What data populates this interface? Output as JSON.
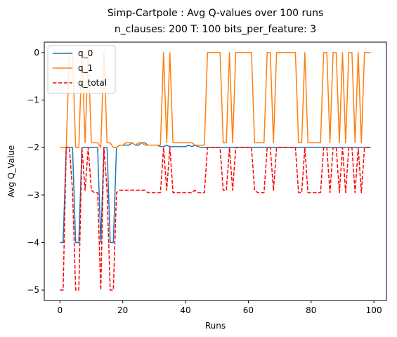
{
  "chart_data": {
    "type": "line",
    "title": "Simp-Cartpole : Avg Q-values over 100 runs",
    "subtitle": "n_clauses: 200 T: 100 bits_per_feature: 3",
    "xlabel": "Runs",
    "ylabel": "Avg Q_Value",
    "xlim": [
      -5,
      104
    ],
    "ylim": [
      -5.22,
      0.22
    ],
    "xticks": [
      0,
      20,
      40,
      60,
      80,
      100
    ],
    "yticks": [
      0,
      -1,
      -2,
      -3,
      -4,
      -5
    ],
    "xtick_labels": [
      "0",
      "20",
      "40",
      "60",
      "80",
      "100"
    ],
    "ytick_labels": [
      "0",
      "−1",
      "−2",
      "−3",
      "−4",
      "−5"
    ],
    "grid": false,
    "legend_position": "top-left",
    "series": [
      {
        "name": "q_0",
        "color": "#1f77b4",
        "dash": "solid",
        "values": [
          -4,
          -4,
          -2,
          -2,
          -2,
          -4,
          -4,
          -2,
          -2,
          -2,
          -2,
          -2,
          -2,
          -4,
          -2,
          -2,
          -4,
          -4,
          -2,
          -1.95,
          -1.95,
          -1.95,
          -1.95,
          -1.9,
          -1.95,
          -1.95,
          -1.9,
          -1.9,
          -1.95,
          -1.95,
          -1.95,
          -1.95,
          -1.98,
          -1.98,
          -1.95,
          -1.98,
          -1.98,
          -1.98,
          -1.98,
          -1.98,
          -1.98,
          -1.95,
          -1.98,
          -1.95,
          -1.98,
          -2,
          -2,
          -2,
          -2,
          -2,
          -2,
          -2,
          -2,
          -2,
          -2,
          -2,
          -2,
          -2,
          -2,
          -2,
          -2,
          -2,
          -2,
          -2,
          -2,
          -2,
          -2,
          -2,
          -2,
          -2,
          -2,
          -2,
          -2,
          -2,
          -2,
          -2,
          -2,
          -2,
          -2,
          -2,
          -2,
          -2,
          -2,
          -2,
          -2,
          -2,
          -2,
          -2,
          -2,
          -2,
          -2,
          -2,
          -2,
          -2,
          -2,
          -2,
          -2,
          -2,
          -2,
          -2
        ]
      },
      {
        "name": "q_1",
        "color": "#ff7f0e",
        "dash": "solid",
        "values": [
          -2,
          -2,
          -2,
          0,
          0,
          -2,
          -2,
          0,
          -1.9,
          0,
          -1.9,
          -1.9,
          -1.9,
          -2,
          0,
          -1.9,
          -1.9,
          -2,
          -2,
          -1.95,
          -1.95,
          -1.9,
          -1.9,
          -1.9,
          -1.95,
          -1.9,
          -1.9,
          -1.95,
          -1.95,
          -1.95,
          -1.95,
          -1.95,
          -1.95,
          0,
          -1.9,
          0,
          -1.9,
          -1.9,
          -1.9,
          -1.9,
          -1.9,
          -1.9,
          -1.9,
          -1.95,
          -1.95,
          -1.95,
          -1.95,
          0,
          0,
          0,
          0,
          0,
          -1.9,
          -1.9,
          0,
          -1.9,
          0,
          0,
          0,
          0,
          0,
          0,
          -1.9,
          -1.9,
          -1.9,
          -1.9,
          0,
          0,
          -1.9,
          0,
          0,
          0,
          0,
          0,
          0,
          0,
          -1.9,
          -1.9,
          0,
          -1.9,
          -1.9,
          -1.9,
          -1.9,
          -1.9,
          0,
          0,
          -1.9,
          0,
          0,
          -1.9,
          0,
          -1.9,
          0,
          0,
          -1.9,
          0,
          -1.9,
          0,
          0,
          0
        ]
      },
      {
        "name": "q_total",
        "color": "#ff0000",
        "dash": "dashed",
        "values": [
          -5,
          -5,
          -2,
          -2,
          -2.9,
          -5,
          -5,
          -2,
          -2.9,
          -2,
          -2.9,
          -2.95,
          -2.95,
          -5,
          -2,
          -2.9,
          -5,
          -5,
          -2.95,
          -2.9,
          -2.9,
          -2.9,
          -2.9,
          -2.9,
          -2.9,
          -2.9,
          -2.9,
          -2.9,
          -2.95,
          -2.95,
          -2.95,
          -2.95,
          -2.95,
          -2,
          -2.9,
          -2,
          -2.95,
          -2.95,
          -2.95,
          -2.95,
          -2.95,
          -2.95,
          -2.95,
          -2.9,
          -2.95,
          -2.95,
          -2.95,
          -2,
          -2,
          -2,
          -2,
          -2,
          -2.9,
          -2.9,
          -2,
          -2.9,
          -2,
          -2,
          -2,
          -2,
          -2,
          -2,
          -2.9,
          -2.95,
          -2.95,
          -2.95,
          -2,
          -2,
          -2.9,
          -2,
          -2,
          -2,
          -2,
          -2,
          -2,
          -2,
          -2.95,
          -2.95,
          -2,
          -2.95,
          -2.95,
          -2.95,
          -2.95,
          -2.95,
          -2,
          -2,
          -2.95,
          -2,
          -2,
          -2.95,
          -2,
          -2.95,
          -2,
          -2,
          -2.95,
          -2,
          -2.95,
          -2,
          -2,
          -2
        ]
      }
    ]
  }
}
